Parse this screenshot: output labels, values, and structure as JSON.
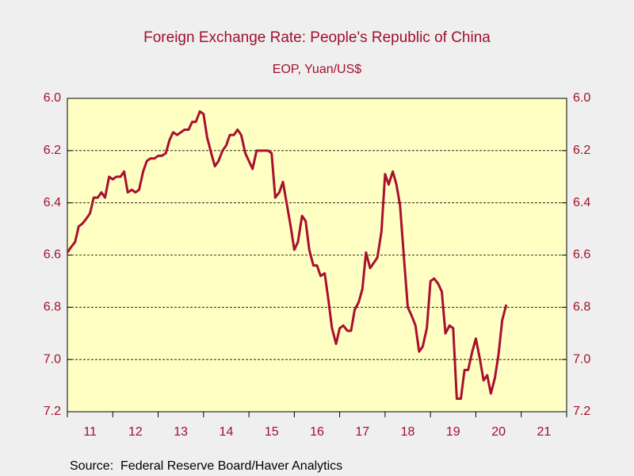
{
  "chart_data": {
    "type": "line",
    "title": "Foreign Exchange Rate: People's Republic of China",
    "subtitle": "EOP, Yuan/US$",
    "source": "Source:  Federal Reserve Board/Haver Analytics",
    "xlim": [
      2011,
      2022
    ],
    "xticks": [
      2011,
      2012,
      2013,
      2014,
      2015,
      2016,
      2017,
      2018,
      2019,
      2020,
      2021,
      2022
    ],
    "xtick_labels": [
      {
        "value": 2011.5,
        "label": "11"
      },
      {
        "value": 2012.5,
        "label": "12"
      },
      {
        "value": 2013.5,
        "label": "13"
      },
      {
        "value": 2014.5,
        "label": "14"
      },
      {
        "value": 2015.5,
        "label": "15"
      },
      {
        "value": 2016.5,
        "label": "16"
      },
      {
        "value": 2017.5,
        "label": "17"
      },
      {
        "value": 2018.5,
        "label": "18"
      },
      {
        "value": 2019.5,
        "label": "19"
      },
      {
        "value": 2020.5,
        "label": "20"
      },
      {
        "value": 2021.5,
        "label": "21"
      }
    ],
    "ylim": [
      7.2,
      6.0
    ],
    "yticks": [
      {
        "value": 6,
        "label": "6.0"
      },
      6.2,
      6.4,
      6.6,
      6.8,
      {
        "value": 7,
        "label": "7.0"
      },
      7.2
    ],
    "y2lim": [
      7.2,
      6.0
    ],
    "y2ticks": [
      {
        "value": 6,
        "label": "6.0"
      },
      6.2,
      6.4,
      6.6,
      6.8,
      {
        "value": 7,
        "label": "7.0"
      },
      7.2
    ],
    "grid": true,
    "x": [
      2011.0,
      2011.08,
      2011.17,
      2011.25,
      2011.33,
      2011.42,
      2011.5,
      2011.58,
      2011.67,
      2011.75,
      2011.83,
      2011.92,
      2012.0,
      2012.08,
      2012.17,
      2012.25,
      2012.33,
      2012.42,
      2012.5,
      2012.58,
      2012.67,
      2012.75,
      2012.83,
      2012.92,
      2013.0,
      2013.08,
      2013.17,
      2013.25,
      2013.33,
      2013.42,
      2013.5,
      2013.58,
      2013.67,
      2013.75,
      2013.83,
      2013.92,
      2014.0,
      2014.08,
      2014.17,
      2014.25,
      2014.33,
      2014.42,
      2014.5,
      2014.58,
      2014.67,
      2014.75,
      2014.83,
      2014.92,
      2015.0,
      2015.08,
      2015.17,
      2015.25,
      2015.33,
      2015.42,
      2015.5,
      2015.58,
      2015.67,
      2015.75,
      2015.83,
      2015.92,
      2016.0,
      2016.08,
      2016.17,
      2016.25,
      2016.33,
      2016.42,
      2016.5,
      2016.58,
      2016.67,
      2016.75,
      2016.83,
      2016.92,
      2017.0,
      2017.08,
      2017.17,
      2017.25,
      2017.33,
      2017.42,
      2017.5,
      2017.58,
      2017.67,
      2017.75,
      2017.83,
      2017.92,
      2018.0,
      2018.08,
      2018.17,
      2018.25,
      2018.33,
      2018.42,
      2018.5,
      2018.58,
      2018.67,
      2018.75,
      2018.83,
      2018.92,
      2019.0,
      2019.08,
      2019.17,
      2019.25,
      2019.33,
      2019.42,
      2019.5,
      2019.58,
      2019.67,
      2019.75,
      2019.83,
      2019.92,
      2020.0,
      2020.08,
      2020.17,
      2020.25,
      2020.33,
      2020.42,
      2020.5,
      2020.58,
      2020.67
    ],
    "series": [
      {
        "color": "#a8102e",
        "values": [
          6.59,
          6.57,
          6.55,
          6.49,
          6.48,
          6.46,
          6.44,
          6.38,
          6.38,
          6.36,
          6.38,
          6.3,
          6.31,
          6.3,
          6.3,
          6.28,
          6.36,
          6.35,
          6.36,
          6.35,
          6.28,
          6.24,
          6.23,
          6.23,
          6.22,
          6.22,
          6.21,
          6.16,
          6.13,
          6.14,
          6.13,
          6.12,
          6.12,
          6.09,
          6.09,
          6.05,
          6.06,
          6.15,
          6.21,
          6.26,
          6.24,
          6.2,
          6.18,
          6.14,
          6.14,
          6.12,
          6.14,
          6.21,
          6.24,
          6.27,
          6.2,
          6.2,
          6.2,
          6.2,
          6.21,
          6.38,
          6.36,
          6.32,
          6.4,
          6.49,
          6.58,
          6.55,
          6.45,
          6.47,
          6.58,
          6.64,
          6.64,
          6.68,
          6.67,
          6.77,
          6.88,
          6.94,
          6.88,
          6.87,
          6.89,
          6.89,
          6.81,
          6.78,
          6.73,
          6.59,
          6.65,
          6.63,
          6.61,
          6.51,
          6.29,
          6.33,
          6.28,
          6.33,
          6.41,
          6.62,
          6.8,
          6.83,
          6.87,
          6.97,
          6.95,
          6.88,
          6.7,
          6.69,
          6.71,
          6.74,
          6.9,
          6.87,
          6.88,
          7.15,
          7.15,
          7.04,
          7.04,
          6.97,
          6.92,
          6.99,
          7.08,
          7.06,
          7.13,
          7.07,
          6.98,
          6.85,
          6.79
        ]
      }
    ]
  }
}
